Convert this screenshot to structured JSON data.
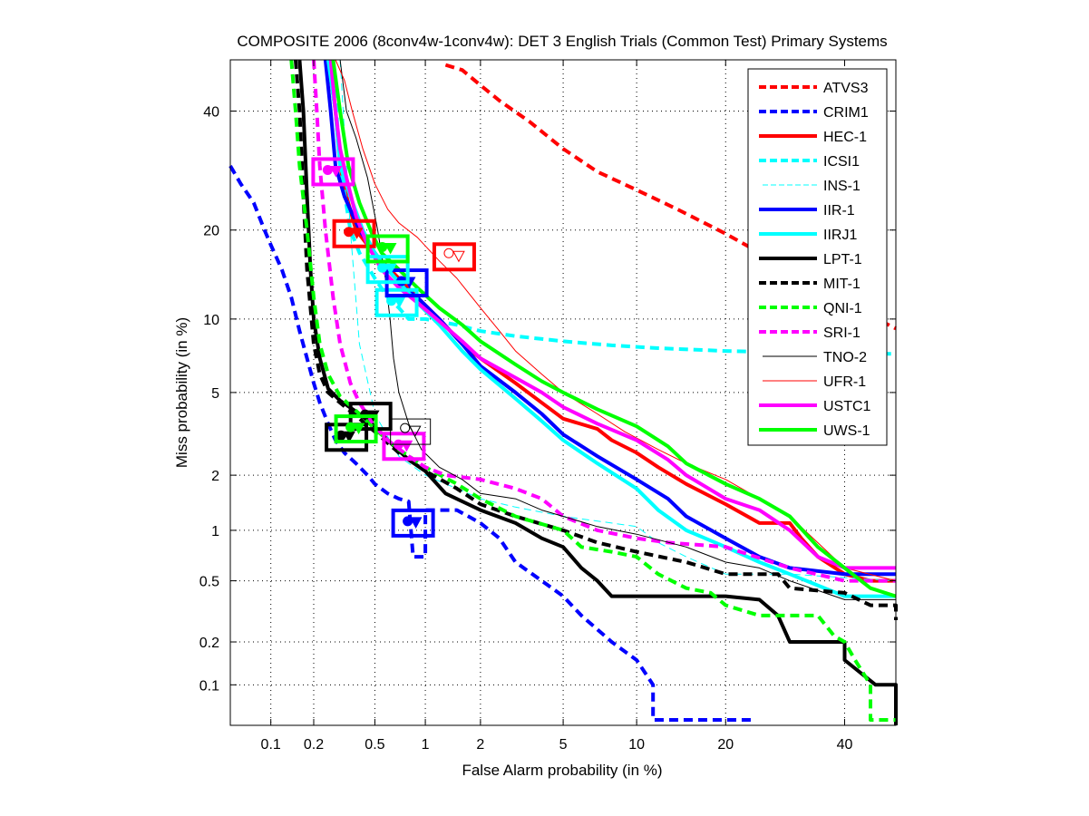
{
  "chart_data": {
    "type": "line",
    "title": "COMPOSITE 2006 (8conv4w-1conv4w): DET 3 English Trials (Common Test) Primary Systems",
    "xlabel": "False Alarm probability (in %)",
    "ylabel": "Miss probability (in %)",
    "x_scale": "probit",
    "y_scale": "probit",
    "xlim": [
      0.05,
      50
    ],
    "ylim": [
      0.05,
      50
    ],
    "xticks": [
      0.1,
      0.2,
      0.5,
      1,
      2,
      5,
      10,
      20,
      40
    ],
    "xtick_labels": [
      "0.1",
      "0.2",
      "0.5",
      "1",
      "2",
      "5",
      "10",
      "20",
      "40"
    ],
    "yticks": [
      0.1,
      0.2,
      0.5,
      1,
      2,
      5,
      10,
      20,
      40
    ],
    "ytick_labels": [
      "0.1",
      "0.2",
      "0.5",
      "1",
      "2",
      "5",
      "10",
      "20",
      "40"
    ],
    "grid": true,
    "legend_position": "top-right",
    "series": [
      {
        "name": "ATVS3",
        "color": "#ff0000",
        "style": "dashed",
        "width": "thick",
        "x": [
          1.3,
          1.6,
          2.0,
          2.5,
          3.5,
          5,
          7,
          10,
          14,
          20,
          30,
          40,
          50
        ],
        "y": [
          49,
          48,
          45,
          42,
          38,
          33,
          29,
          26,
          23,
          19.5,
          15,
          11.5,
          9.2
        ]
      },
      {
        "name": "CRIM1",
        "color": "#0000ff",
        "style": "dashed",
        "width": "thick",
        "x": [
          0.05,
          0.06,
          0.075,
          0.09,
          0.1,
          0.12,
          0.14,
          0.16,
          0.18,
          0.2,
          0.22,
          0.25,
          0.28,
          0.32,
          0.38,
          0.45,
          0.5,
          0.6,
          0.7,
          0.8,
          0.85,
          0.85,
          1.0,
          1.0,
          1.5,
          2.0,
          2.5,
          3,
          4,
          5,
          6,
          8,
          10,
          11.5,
          11.5,
          24
        ],
        "y": [
          30,
          27,
          24,
          20,
          18,
          15,
          12,
          9,
          7,
          5.5,
          4.5,
          3.6,
          3.0,
          2.6,
          2.3,
          2.0,
          1.8,
          1.6,
          1.5,
          1.45,
          0.7,
          0.7,
          0.7,
          1.3,
          1.3,
          1.1,
          0.9,
          0.65,
          0.5,
          0.4,
          0.3,
          0.2,
          0.15,
          0.1,
          0.055,
          0.055
        ]
      },
      {
        "name": "HEC-1",
        "color": "#ff0000",
        "style": "solid",
        "width": "thick",
        "x": [
          0.25,
          0.28,
          0.3,
          0.33,
          0.38,
          0.45,
          0.55,
          0.7,
          0.9,
          1.2,
          1.6,
          2.0,
          3,
          4,
          5,
          7,
          8,
          10,
          12,
          15,
          20,
          25,
          30,
          32,
          35,
          40,
          45,
          50
        ],
        "y": [
          50,
          40,
          30,
          25,
          20,
          18,
          16,
          14,
          12,
          10,
          8,
          7,
          5.5,
          4.5,
          3.8,
          3.4,
          3.0,
          2.6,
          2.2,
          1.8,
          1.4,
          1.1,
          1.1,
          0.9,
          0.7,
          0.55,
          0.5,
          0.5
        ]
      },
      {
        "name": "ICSI1",
        "color": "#00ffff",
        "style": "dashed",
        "width": "thick",
        "x": [
          0.27,
          0.3,
          0.35,
          0.4,
          0.5,
          0.6,
          0.7,
          0.8,
          1.0,
          1.5,
          2,
          3,
          5,
          8,
          12,
          20,
          30,
          50
        ],
        "y": [
          50,
          30,
          20,
          17,
          14,
          12,
          11,
          10,
          10,
          9.5,
          9,
          8.6,
          8.2,
          7.9,
          7.7,
          7.5,
          7.4,
          7.3
        ]
      },
      {
        "name": "INS-1",
        "color": "#00ffff",
        "style": "dashed",
        "width": "thin",
        "x": [
          0.3,
          0.35,
          0.4,
          0.5,
          0.7,
          1.0,
          1.5,
          2,
          3,
          5,
          8,
          10,
          12,
          15,
          20,
          30,
          50
        ],
        "y": [
          50,
          20,
          8,
          4,
          2.5,
          2.0,
          1.7,
          1.5,
          1.35,
          1.2,
          1.1,
          1.05,
          0.85,
          0.7,
          0.55,
          0.55,
          0.5
        ]
      },
      {
        "name": "IIR-1",
        "color": "#0000ff",
        "style": "solid",
        "width": "thick",
        "x": [
          0.24,
          0.26,
          0.28,
          0.32,
          0.4,
          0.5,
          0.6,
          0.75,
          0.9,
          1.2,
          1.6,
          2,
          3,
          4,
          5,
          7,
          10,
          13,
          15,
          20,
          25,
          30,
          40,
          50
        ],
        "y": [
          50,
          40,
          30,
          25,
          20,
          17,
          15,
          13,
          12,
          10,
          8,
          6.5,
          5,
          4,
          3.2,
          2.5,
          1.9,
          1.5,
          1.2,
          0.9,
          0.7,
          0.6,
          0.55,
          0.55
        ]
      },
      {
        "name": "IIRJ1",
        "color": "#00ffff",
        "style": "solid",
        "width": "thick",
        "x": [
          0.25,
          0.28,
          0.3,
          0.35,
          0.42,
          0.5,
          0.6,
          0.75,
          0.9,
          1.2,
          1.6,
          2,
          3,
          4,
          5,
          7,
          10,
          12,
          15,
          20,
          25,
          30,
          40,
          50
        ],
        "y": [
          50,
          40,
          30,
          25,
          20,
          17,
          15,
          13,
          11.5,
          9.5,
          7.5,
          6.3,
          4.7,
          3.7,
          3.0,
          2.3,
          1.7,
          1.3,
          1.0,
          0.8,
          0.65,
          0.55,
          0.4,
          0.4
        ]
      },
      {
        "name": "LPT-1",
        "color": "#000000",
        "style": "solid",
        "width": "thick",
        "x": [
          0.16,
          0.17,
          0.18,
          0.19,
          0.2,
          0.22,
          0.25,
          0.3,
          0.4,
          0.5,
          0.6,
          0.8,
          1.0,
          1.3,
          2,
          3,
          4,
          5,
          6,
          7,
          8,
          10,
          15,
          20,
          25,
          28,
          30,
          30,
          40,
          40,
          46,
          46,
          50,
          50
        ],
        "y": [
          50,
          40,
          25,
          15,
          10,
          7,
          5.2,
          4.6,
          4.0,
          3.5,
          3.0,
          2.4,
          2.1,
          1.6,
          1.3,
          1.1,
          0.9,
          0.8,
          0.6,
          0.5,
          0.4,
          0.4,
          0.4,
          0.4,
          0.38,
          0.3,
          0.2,
          0.2,
          0.2,
          0.15,
          0.1,
          0.1,
          0.1,
          0.05
        ]
      },
      {
        "name": "MIT-1",
        "color": "#000000",
        "style": "dashed",
        "width": "thick",
        "x": [
          0.15,
          0.16,
          0.17,
          0.18,
          0.2,
          0.22,
          0.25,
          0.3,
          0.4,
          0.5,
          0.7,
          1.0,
          1.5,
          2,
          3,
          5,
          7,
          10,
          15,
          20,
          28,
          30,
          40,
          45,
          50,
          50
        ],
        "y": [
          50,
          40,
          25,
          15,
          8,
          6,
          5,
          4.5,
          3.8,
          3.3,
          2.6,
          2.1,
          1.7,
          1.4,
          1.2,
          1.0,
          0.85,
          0.75,
          0.65,
          0.55,
          0.55,
          0.45,
          0.42,
          0.35,
          0.35,
          0.28
        ]
      },
      {
        "name": "QNI-1",
        "color": "#00ff00",
        "style": "dashed",
        "width": "thick",
        "x": [
          0.14,
          0.15,
          0.16,
          0.18,
          0.2,
          0.22,
          0.25,
          0.3,
          0.4,
          0.5,
          0.7,
          1.0,
          1.5,
          2,
          3,
          5,
          6,
          8,
          10,
          12,
          15,
          18,
          20,
          25,
          30,
          35,
          38,
          40,
          42,
          45,
          45,
          50
        ],
        "y": [
          50,
          40,
          30,
          20,
          12,
          8,
          6,
          4.8,
          4.0,
          3.4,
          2.7,
          2.2,
          1.8,
          1.5,
          1.2,
          1.0,
          0.8,
          0.75,
          0.7,
          0.55,
          0.45,
          0.42,
          0.35,
          0.3,
          0.3,
          0.3,
          0.22,
          0.2,
          0.15,
          0.1,
          0.055,
          0.055
        ]
      },
      {
        "name": "SRI-1",
        "color": "#ff00ff",
        "style": "dashed",
        "width": "thick",
        "x": [
          0.2,
          0.21,
          0.22,
          0.24,
          0.27,
          0.3,
          0.35,
          0.4,
          0.5,
          0.6,
          0.8,
          1.0,
          1.3,
          2,
          3,
          4,
          5,
          7,
          10,
          13,
          20,
          30,
          40,
          50
        ],
        "y": [
          50,
          40,
          30,
          20,
          12,
          8,
          5.5,
          4.5,
          3.5,
          3.0,
          2.5,
          2.2,
          2.0,
          1.9,
          1.7,
          1.5,
          1.2,
          1.0,
          0.9,
          0.85,
          0.8,
          0.6,
          0.5,
          0.5
        ]
      },
      {
        "name": "TNO-2",
        "color": "#000000",
        "style": "solid",
        "width": "thin",
        "x": [
          0.3,
          0.33,
          0.38,
          0.45,
          0.52,
          0.58,
          0.62,
          0.65,
          0.7,
          0.8,
          0.95,
          1.2,
          1.6,
          2,
          3,
          4,
          5,
          7,
          10,
          15,
          20,
          25,
          30,
          40,
          50
        ],
        "y": [
          50,
          40,
          35,
          28,
          20,
          14,
          10,
          7,
          5,
          3.6,
          2.7,
          2.2,
          1.9,
          1.6,
          1.5,
          1.3,
          1.2,
          1.05,
          0.95,
          0.8,
          0.65,
          0.6,
          0.5,
          0.38,
          0.38
        ]
      },
      {
        "name": "UFR-1",
        "color": "#ff0000",
        "style": "solid",
        "width": "thin",
        "x": [
          0.28,
          0.32,
          0.36,
          0.42,
          0.5,
          0.6,
          0.7,
          0.9,
          1.2,
          1.5,
          2,
          2.5,
          3,
          4,
          5,
          7,
          9,
          12,
          15,
          20,
          25,
          30,
          40,
          50
        ],
        "y": [
          50,
          46,
          40,
          33,
          27,
          23,
          21,
          19,
          16,
          14,
          11,
          9,
          7.5,
          6,
          5,
          4,
          3.3,
          2.7,
          2.3,
          1.9,
          1.5,
          1.2,
          0.6,
          0.5
        ]
      },
      {
        "name": "USTC1",
        "color": "#ff00ff",
        "style": "solid",
        "width": "thick",
        "x": [
          0.26,
          0.28,
          0.3,
          0.33,
          0.38,
          0.45,
          0.55,
          0.7,
          0.9,
          1.2,
          1.6,
          2,
          3,
          4,
          5,
          7,
          10,
          13,
          15,
          20,
          25,
          30,
          35,
          40,
          50
        ],
        "y": [
          50,
          40,
          33,
          28,
          22,
          18,
          15,
          13,
          11.5,
          9.8,
          8.2,
          7,
          5.8,
          5,
          4.3,
          3.6,
          3.0,
          2.4,
          2.0,
          1.5,
          1.3,
          1.0,
          0.7,
          0.6,
          0.6
        ]
      },
      {
        "name": "UWS-1",
        "color": "#00ff00",
        "style": "solid",
        "width": "thick",
        "x": [
          0.27,
          0.3,
          0.34,
          0.4,
          0.48,
          0.55,
          0.7,
          0.9,
          1.2,
          1.6,
          2,
          3,
          4,
          5,
          7,
          10,
          13,
          15,
          20,
          25,
          30,
          35,
          40,
          45,
          50
        ],
        "y": [
          50,
          40,
          30,
          24,
          19.5,
          17,
          15,
          13,
          11,
          9.5,
          8.2,
          6.6,
          5.6,
          5,
          4.2,
          3.5,
          2.8,
          2.3,
          1.8,
          1.5,
          1.2,
          0.8,
          0.6,
          0.45,
          0.4
        ]
      }
    ],
    "operating_points": [
      {
        "series": "ATVS3",
        "marker": "box",
        "x": 1.45,
        "y": 16.5
      },
      {
        "series": "HEC-1",
        "marker": "box",
        "x": 0.37,
        "y": 19.5
      },
      {
        "series": "ICSI1",
        "marker": "box",
        "x": 0.68,
        "y": 11.5
      },
      {
        "series": "IIR-1",
        "marker": "box",
        "x": 0.78,
        "y": 13.5
      },
      {
        "series": "IIRJ1",
        "marker": "box",
        "x": 0.6,
        "y": 15
      },
      {
        "series": "LPT-1",
        "marker": "box",
        "x": 0.47,
        "y": 3.9
      },
      {
        "series": "MIT-1",
        "marker": "box",
        "x": 0.33,
        "y": 3.1
      },
      {
        "series": "QNI-1",
        "marker": "box",
        "x": 0.38,
        "y": 3.4
      },
      {
        "series": "SRI-1",
        "marker": "box",
        "x": 0.75,
        "y": 2.8
      },
      {
        "series": "TNO-2",
        "marker": "box",
        "x": 0.82,
        "y": 3.3
      },
      {
        "series": "UFR-1",
        "marker": "box",
        "x": 1.45,
        "y": 16.5
      },
      {
        "series": "USTC1",
        "marker": "box",
        "x": 0.27,
        "y": 29
      },
      {
        "series": "UWS-1",
        "marker": "box",
        "x": 0.6,
        "y": 17.5
      },
      {
        "series": "CRIM1",
        "marker": "box",
        "x": 0.85,
        "y": 1.1
      }
    ]
  }
}
